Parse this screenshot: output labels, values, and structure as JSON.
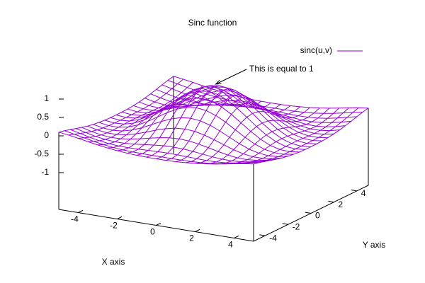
{
  "chart_data": {
    "type": "surface",
    "title": "Sinc function",
    "xlabel": "X axis",
    "ylabel": "Y axis",
    "legend": "top right",
    "annotations": [
      {
        "text": "This is equal to 1"
      }
    ],
    "x": [
      -5,
      -4.5,
      -4,
      -3.5,
      -3,
      -2.5,
      -2,
      -1.5,
      -1,
      -0.5,
      0,
      0.5,
      1,
      1.5,
      2,
      2.5,
      3,
      3.5,
      4,
      4.5,
      5
    ],
    "y": [
      -5,
      -4.5,
      -4,
      -3.5,
      -3,
      -2.5,
      -2,
      -1.5,
      -1,
      -0.5,
      0,
      0.5,
      1,
      1.5,
      2,
      2.5,
      3,
      3.5,
      4,
      4.5,
      5
    ],
    "xlim": [
      -5,
      5
    ],
    "ylim": [
      -5,
      5
    ],
    "zlim": [
      -1,
      1
    ],
    "xticks": [
      -4,
      -2,
      0,
      2,
      4
    ],
    "yticks": [
      -4,
      -2,
      0,
      2,
      4
    ],
    "zticks": [
      -1,
      -0.5,
      0,
      0.5,
      1
    ],
    "series": [
      {
        "name": "sinc(u,v)",
        "color": "#9400d3",
        "values": [
          [
            0.1,
            0.064,
            0.019,
            -0.029,
            -0.074,
            -0.114,
            -0.144,
            -0.167,
            -0.182,
            -0.189,
            -0.192,
            -0.189,
            -0.182,
            -0.167,
            -0.144,
            -0.114,
            -0.074,
            -0.029,
            0.019,
            0.064,
            0.1
          ],
          [
            0.064,
            0.013,
            -0.043,
            -0.096,
            -0.141,
            -0.176,
            -0.198,
            -0.211,
            -0.216,
            -0.217,
            -0.217,
            -0.217,
            -0.216,
            -0.211,
            -0.198,
            -0.176,
            -0.141,
            -0.096,
            -0.043,
            0.013,
            0.064
          ],
          [
            0.019,
            -0.043,
            -0.104,
            -0.155,
            -0.192,
            -0.212,
            -0.217,
            -0.211,
            -0.201,
            -0.193,
            -0.189,
            -0.193,
            -0.201,
            -0.211,
            -0.217,
            -0.212,
            -0.192,
            -0.155,
            -0.104,
            -0.043,
            0.019
          ],
          [
            -0.029,
            -0.096,
            -0.155,
            -0.196,
            -0.216,
            -0.213,
            -0.193,
            -0.162,
            -0.132,
            -0.108,
            -0.1,
            -0.108,
            -0.132,
            -0.162,
            -0.193,
            -0.213,
            -0.216,
            -0.196,
            -0.155,
            -0.096,
            -0.029
          ],
          [
            -0.074,
            -0.141,
            -0.192,
            -0.216,
            -0.21,
            -0.177,
            -0.124,
            -0.063,
            -0.007,
            0.033,
            0.047,
            0.033,
            -0.007,
            -0.063,
            -0.124,
            -0.177,
            -0.21,
            -0.216,
            -0.192,
            -0.141,
            -0.074
          ],
          [
            -0.114,
            -0.176,
            -0.212,
            -0.213,
            -0.177,
            -0.108,
            -0.019,
            0.077,
            0.161,
            0.219,
            0.239,
            0.219,
            0.161,
            0.077,
            -0.019,
            -0.108,
            -0.177,
            -0.213,
            -0.212,
            -0.176,
            -0.114
          ],
          [
            -0.144,
            -0.198,
            -0.217,
            -0.193,
            -0.124,
            -0.019,
            0.109,
            0.239,
            0.352,
            0.428,
            0.455,
            0.428,
            0.352,
            0.239,
            0.109,
            -0.019,
            -0.124,
            -0.193,
            -0.217,
            -0.198,
            -0.144
          ],
          [
            -0.167,
            -0.211,
            -0.211,
            -0.162,
            -0.063,
            0.077,
            0.239,
            0.402,
            0.54,
            0.632,
            0.665,
            0.632,
            0.54,
            0.402,
            0.239,
            0.077,
            -0.063,
            -0.162,
            -0.211,
            -0.211,
            -0.167
          ],
          [
            -0.182,
            -0.216,
            -0.201,
            -0.132,
            -0.007,
            0.161,
            0.352,
            0.54,
            0.698,
            0.805,
            0.841,
            0.805,
            0.698,
            0.54,
            0.352,
            0.161,
            -0.007,
            -0.132,
            -0.201,
            -0.216,
            -0.182
          ],
          [
            -0.189,
            -0.217,
            -0.193,
            -0.108,
            0.033,
            0.219,
            0.428,
            0.632,
            0.805,
            0.919,
            0.959,
            0.919,
            0.805,
            0.632,
            0.428,
            0.219,
            0.033,
            -0.108,
            -0.193,
            -0.217,
            -0.189
          ],
          [
            -0.192,
            -0.217,
            -0.189,
            -0.1,
            0.047,
            0.239,
            0.455,
            0.665,
            0.841,
            0.959,
            1,
            0.959,
            0.841,
            0.665,
            0.455,
            0.239,
            0.047,
            -0.1,
            -0.189,
            -0.217,
            -0.192
          ],
          [
            -0.189,
            -0.217,
            -0.193,
            -0.108,
            0.033,
            0.219,
            0.428,
            0.632,
            0.805,
            0.919,
            0.959,
            0.919,
            0.805,
            0.632,
            0.428,
            0.219,
            0.033,
            -0.108,
            -0.193,
            -0.217,
            -0.189
          ],
          [
            -0.182,
            -0.216,
            -0.201,
            -0.132,
            -0.007,
            0.161,
            0.352,
            0.54,
            0.698,
            0.805,
            0.841,
            0.805,
            0.698,
            0.54,
            0.352,
            0.161,
            -0.007,
            -0.132,
            -0.201,
            -0.216,
            -0.182
          ],
          [
            -0.167,
            -0.211,
            -0.211,
            -0.162,
            -0.063,
            0.077,
            0.239,
            0.402,
            0.54,
            0.632,
            0.665,
            0.632,
            0.54,
            0.402,
            0.239,
            0.077,
            -0.063,
            -0.162,
            -0.211,
            -0.211,
            -0.167
          ],
          [
            -0.144,
            -0.198,
            -0.217,
            -0.193,
            -0.124,
            -0.019,
            0.109,
            0.239,
            0.352,
            0.428,
            0.455,
            0.428,
            0.352,
            0.239,
            0.109,
            -0.019,
            -0.124,
            -0.193,
            -0.217,
            -0.198,
            -0.144
          ],
          [
            -0.114,
            -0.176,
            -0.212,
            -0.213,
            -0.177,
            -0.108,
            -0.019,
            0.077,
            0.161,
            0.219,
            0.239,
            0.219,
            0.161,
            0.077,
            -0.019,
            -0.108,
            -0.177,
            -0.213,
            -0.212,
            -0.176,
            -0.114
          ],
          [
            -0.074,
            -0.141,
            -0.192,
            -0.216,
            -0.21,
            -0.177,
            -0.124,
            -0.063,
            -0.007,
            0.033,
            0.047,
            0.033,
            -0.007,
            -0.063,
            -0.124,
            -0.177,
            -0.21,
            -0.216,
            -0.192,
            -0.141,
            -0.074
          ],
          [
            -0.029,
            -0.096,
            -0.155,
            -0.196,
            -0.216,
            -0.213,
            -0.193,
            -0.162,
            -0.132,
            -0.108,
            -0.1,
            -0.108,
            -0.132,
            -0.162,
            -0.193,
            -0.213,
            -0.216,
            -0.196,
            -0.155,
            -0.096,
            -0.029
          ],
          [
            0.019,
            -0.043,
            -0.104,
            -0.155,
            -0.192,
            -0.212,
            -0.217,
            -0.211,
            -0.201,
            -0.193,
            -0.189,
            -0.193,
            -0.201,
            -0.211,
            -0.217,
            -0.212,
            -0.192,
            -0.155,
            -0.104,
            -0.043,
            0.019
          ],
          [
            0.064,
            0.013,
            -0.043,
            -0.096,
            -0.141,
            -0.176,
            -0.198,
            -0.211,
            -0.216,
            -0.217,
            -0.217,
            -0.217,
            -0.216,
            -0.211,
            -0.198,
            -0.176,
            -0.141,
            -0.096,
            -0.043,
            0.013,
            0.064
          ],
          [
            0.1,
            0.064,
            0.019,
            -0.029,
            -0.074,
            -0.114,
            -0.144,
            -0.167,
            -0.182,
            -0.189,
            -0.192,
            -0.189,
            -0.182,
            -0.167,
            -0.144,
            -0.114,
            -0.074,
            -0.029,
            0.019,
            0.064,
            0.1
          ]
        ]
      }
    ]
  }
}
